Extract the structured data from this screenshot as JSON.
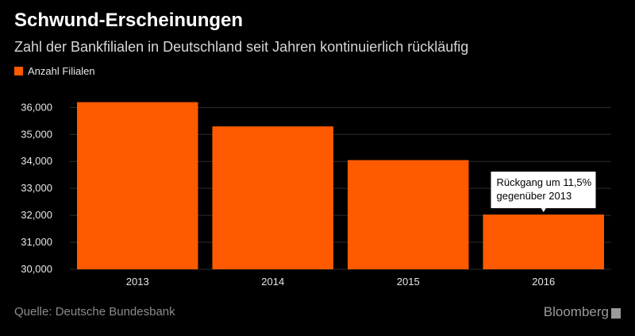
{
  "header": {
    "title": "Schwund-Erscheinungen",
    "subtitle": "Zahl der Bankfilialen in Deutschland seit Jahren kontinuierlich rückläufig"
  },
  "legend": {
    "label": "Anzahl Filialen",
    "color": "#ff5a00"
  },
  "footer": {
    "source": "Quelle: Deutsche Bundesbank",
    "brand": "Bloomberg"
  },
  "colors": {
    "background": "#000000",
    "bar": "#ff5a00",
    "grid": "#2e2e2e"
  },
  "chart_data": {
    "type": "bar",
    "title": "Schwund-Erscheinungen",
    "subtitle": "Zahl der Bankfilialen in Deutschland seit Jahren kontinuierlich rückläufig",
    "categories": [
      "2013",
      "2014",
      "2015",
      "2016"
    ],
    "series": [
      {
        "name": "Anzahl Filialen",
        "values": [
          36200,
          35300,
          34050,
          32030
        ]
      }
    ],
    "ylim": [
      30000,
      36600
    ],
    "yticks": [
      30000,
      31000,
      32000,
      33000,
      34000,
      35000,
      36000
    ],
    "ytick_labels": [
      "30,000",
      "31,000",
      "32,000",
      "33,000",
      "34,000",
      "35,000",
      "36,000"
    ],
    "grid": true,
    "legend_position": "top-left",
    "annotation": {
      "category": "2016",
      "text_lines": [
        "Rückgang um 11,5%",
        "gegenüber 2013"
      ]
    }
  }
}
